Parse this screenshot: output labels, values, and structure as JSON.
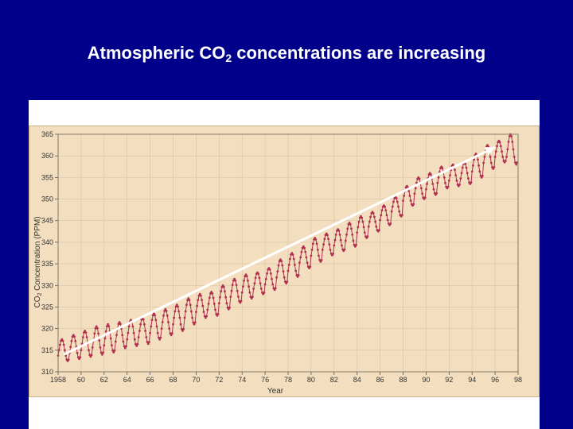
{
  "slide": {
    "title_prefix": "Atmospheric CO",
    "title_sub": "2",
    "title_suffix": " concentrations are increasing"
  },
  "colors": {
    "background": "#00008a",
    "plot_background": "#f3dfbf",
    "series": "#b03050",
    "trend_arrow": "#ffffff"
  },
  "chart_data": {
    "type": "line",
    "xlabel": "Year",
    "ylabel_prefix": "CO",
    "ylabel_sub": "2",
    "ylabel_suffix": " Concentration (PPM)",
    "xlim": [
      1958,
      1998
    ],
    "ylim": [
      310,
      365
    ],
    "x_ticks": [
      1958,
      1960,
      1962,
      1964,
      1966,
      1968,
      1970,
      1972,
      1974,
      1976,
      1978,
      1980,
      1982,
      1984,
      1986,
      1988,
      1990,
      1992,
      1994,
      1996,
      1998
    ],
    "x_tick_labels": [
      "1958",
      "60",
      "62",
      "64",
      "66",
      "68",
      "70",
      "72",
      "74",
      "76",
      "78",
      "80",
      "82",
      "84",
      "86",
      "88",
      "90",
      "92",
      "94",
      "96",
      "98"
    ],
    "y_ticks": [
      310,
      315,
      320,
      325,
      330,
      335,
      340,
      345,
      350,
      355,
      360,
      365
    ],
    "y_tick_labels": [
      "310",
      "315",
      "320",
      "325",
      "330",
      "335",
      "340",
      "345",
      "350",
      "355",
      "360",
      "365"
    ],
    "grid": true,
    "series": [
      {
        "annual_peaks": [
          [
            1958,
            317.5
          ],
          [
            1959,
            318.5
          ],
          [
            1960,
            319.5
          ],
          [
            1961,
            320.5
          ],
          [
            1962,
            321.0
          ],
          [
            1963,
            321.5
          ],
          [
            1964,
            322.0
          ],
          [
            1965,
            322.5
          ],
          [
            1966,
            323.5
          ],
          [
            1967,
            324.5
          ],
          [
            1968,
            325.5
          ],
          [
            1969,
            327.0
          ],
          [
            1970,
            328.0
          ],
          [
            1971,
            328.5
          ],
          [
            1972,
            330.0
          ],
          [
            1973,
            331.5
          ],
          [
            1974,
            332.5
          ],
          [
            1975,
            333.0
          ],
          [
            1976,
            334.0
          ],
          [
            1977,
            336.0
          ],
          [
            1978,
            337.5
          ],
          [
            1979,
            339.0
          ],
          [
            1980,
            341.0
          ],
          [
            1981,
            342.0
          ],
          [
            1982,
            343.0
          ],
          [
            1983,
            344.5
          ],
          [
            1984,
            346.0
          ],
          [
            1985,
            347.0
          ],
          [
            1986,
            348.5
          ],
          [
            1987,
            350.5
          ],
          [
            1988,
            353.0
          ],
          [
            1989,
            355.0
          ],
          [
            1990,
            356.0
          ],
          [
            1991,
            357.5
          ],
          [
            1992,
            358.0
          ],
          [
            1993,
            358.5
          ],
          [
            1994,
            360.5
          ],
          [
            1995,
            362.5
          ],
          [
            1996,
            363.5
          ],
          [
            1997,
            365.0
          ]
        ],
        "annual_troughs": [
          [
            1958,
            312.5
          ],
          [
            1959,
            313.0
          ],
          [
            1960,
            313.5
          ],
          [
            1961,
            314.0
          ],
          [
            1962,
            314.5
          ],
          [
            1963,
            315.5
          ],
          [
            1964,
            316.0
          ],
          [
            1965,
            316.5
          ],
          [
            1966,
            317.5
          ],
          [
            1967,
            318.5
          ],
          [
            1968,
            319.5
          ],
          [
            1969,
            321.0
          ],
          [
            1970,
            322.5
          ],
          [
            1971,
            323.0
          ],
          [
            1972,
            324.5
          ],
          [
            1973,
            326.0
          ],
          [
            1974,
            327.0
          ],
          [
            1975,
            328.0
          ],
          [
            1976,
            329.0
          ],
          [
            1977,
            330.5
          ],
          [
            1978,
            332.0
          ],
          [
            1979,
            334.0
          ],
          [
            1980,
            335.5
          ],
          [
            1981,
            337.0
          ],
          [
            1982,
            338.0
          ],
          [
            1983,
            339.0
          ],
          [
            1984,
            341.0
          ],
          [
            1985,
            342.5
          ],
          [
            1986,
            344.0
          ],
          [
            1987,
            346.0
          ],
          [
            1988,
            348.5
          ],
          [
            1989,
            350.0
          ],
          [
            1990,
            351.0
          ],
          [
            1991,
            352.5
          ],
          [
            1992,
            353.0
          ],
          [
            1993,
            353.5
          ],
          [
            1994,
            355.0
          ],
          [
            1995,
            357.0
          ],
          [
            1996,
            358.5
          ],
          [
            1997,
            358.0
          ]
        ]
      }
    ],
    "trend_arrow": {
      "from": [
        1958.5,
        314.0
      ],
      "to": [
        1996.0,
        362.0
      ]
    }
  }
}
